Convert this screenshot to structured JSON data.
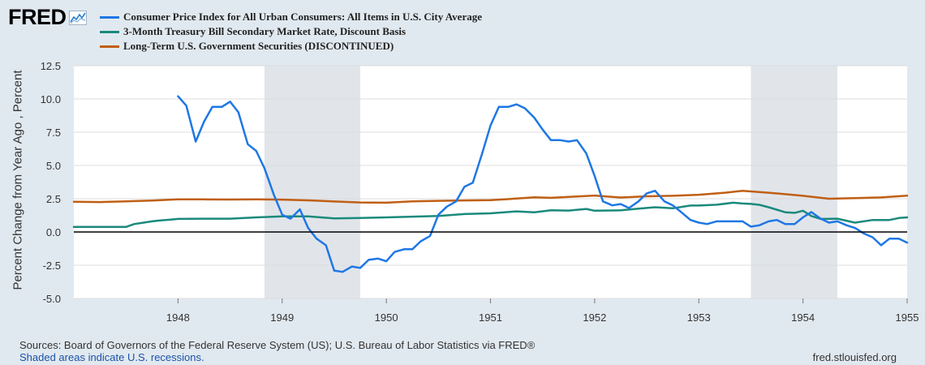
{
  "brand": {
    "name": "FRED"
  },
  "colors": {
    "cpi": "#1f77e4",
    "tbill": "#1a8a7c",
    "longterm": "#c05f14",
    "recession": "#e1e5ea",
    "plot_bg": "#ffffff",
    "grid": "#dcdcdc"
  },
  "chart_data": {
    "type": "line",
    "ylabel": "Percent Change from Year Ago , Percent",
    "xlim": [
      1947.0,
      1955.0
    ],
    "ylim": [
      -5.0,
      12.5
    ],
    "yticks": [
      {
        "v": 12.5,
        "label": "12.5"
      },
      {
        "v": 10.0,
        "label": "10.0"
      },
      {
        "v": 7.5,
        "label": "7.5"
      },
      {
        "v": 5.0,
        "label": "5.0"
      },
      {
        "v": 2.5,
        "label": "2.5"
      },
      {
        "v": 0.0,
        "label": "0.0"
      },
      {
        "v": -2.5,
        "label": "-2.5"
      },
      {
        "v": -5.0,
        "label": "-5.0"
      }
    ],
    "xticks": [
      {
        "v": 1948.0,
        "label": "1948"
      },
      {
        "v": 1949.0,
        "label": "1949"
      },
      {
        "v": 1950.0,
        "label": "1950"
      },
      {
        "v": 1951.0,
        "label": "1951"
      },
      {
        "v": 1952.0,
        "label": "1952"
      },
      {
        "v": 1953.0,
        "label": "1953"
      },
      {
        "v": 1954.0,
        "label": "1954"
      },
      {
        "v": 1955.0,
        "label": "1955"
      }
    ],
    "recessions": [
      [
        1948.83,
        1949.75
      ],
      [
        1953.5,
        1954.33
      ]
    ],
    "series": [
      {
        "key": "cpi",
        "name": "Consumer Price Index for All Urban Consumers: All Items in U.S. City Average",
        "x": [
          1948.0,
          1948.08,
          1948.17,
          1948.25,
          1948.33,
          1948.42,
          1948.5,
          1948.58,
          1948.67,
          1948.75,
          1948.83,
          1948.92,
          1949.0,
          1949.08,
          1949.17,
          1949.25,
          1949.33,
          1949.42,
          1949.5,
          1949.58,
          1949.67,
          1949.75,
          1949.83,
          1949.92,
          1950.0,
          1950.08,
          1950.17,
          1950.25,
          1950.33,
          1950.42,
          1950.5,
          1950.58,
          1950.67,
          1950.75,
          1950.83,
          1950.92,
          1951.0,
          1951.08,
          1951.17,
          1951.25,
          1951.33,
          1951.42,
          1951.5,
          1951.58,
          1951.67,
          1951.75,
          1951.83,
          1951.92,
          1952.0,
          1952.08,
          1952.17,
          1952.25,
          1952.33,
          1952.42,
          1952.5,
          1952.58,
          1952.67,
          1952.75,
          1952.83,
          1952.92,
          1953.0,
          1953.08,
          1953.17,
          1953.25,
          1953.33,
          1953.42,
          1953.5,
          1953.58,
          1953.67,
          1953.75,
          1953.83,
          1953.92,
          1954.0,
          1954.08,
          1954.17,
          1954.25,
          1954.33,
          1954.42,
          1954.5,
          1954.58,
          1954.67,
          1954.75,
          1954.83,
          1954.92,
          1955.0
        ],
        "y": [
          10.2,
          9.5,
          6.8,
          8.3,
          9.4,
          9.4,
          9.8,
          9.0,
          6.6,
          6.1,
          4.8,
          2.8,
          1.3,
          1.0,
          1.7,
          0.3,
          -0.5,
          -1.0,
          -2.9,
          -3.0,
          -2.6,
          -2.7,
          -2.1,
          -2.0,
          -2.2,
          -1.5,
          -1.3,
          -1.3,
          -0.7,
          -0.3,
          1.3,
          1.9,
          2.3,
          3.4,
          3.7,
          5.9,
          8.0,
          9.4,
          9.4,
          9.6,
          9.3,
          8.6,
          7.7,
          6.9,
          6.9,
          6.8,
          6.9,
          5.9,
          4.2,
          2.3,
          2.0,
          2.1,
          1.8,
          2.3,
          2.9,
          3.1,
          2.3,
          2.0,
          1.5,
          0.9,
          0.7,
          0.6,
          0.8,
          0.8,
          0.8,
          0.8,
          0.4,
          0.5,
          0.8,
          0.9,
          0.6,
          0.6,
          1.1,
          1.5,
          1.0,
          0.7,
          0.8,
          0.5,
          0.3,
          -0.1,
          -0.4,
          -1.0,
          -0.5,
          -0.5,
          -0.8
        ]
      },
      {
        "key": "tbill",
        "name": "3-Month Treasury Bill Secondary Market Rate, Discount Basis",
        "x": [
          1947.0,
          1947.08,
          1947.17,
          1947.25,
          1947.33,
          1947.42,
          1947.5,
          1947.58,
          1947.67,
          1947.75,
          1947.83,
          1947.92,
          1948.0,
          1948.25,
          1948.5,
          1948.75,
          1949.0,
          1949.25,
          1949.5,
          1949.75,
          1950.0,
          1950.25,
          1950.5,
          1950.75,
          1951.0,
          1951.17,
          1951.25,
          1951.42,
          1951.58,
          1951.75,
          1951.92,
          1952.0,
          1952.25,
          1952.42,
          1952.58,
          1952.75,
          1952.92,
          1953.0,
          1953.17,
          1953.33,
          1953.42,
          1953.5,
          1953.58,
          1953.67,
          1953.83,
          1953.92,
          1954.0,
          1954.08,
          1954.17,
          1954.33,
          1954.5,
          1954.67,
          1954.83,
          1954.92,
          1955.0
        ],
        "y": [
          0.38,
          0.38,
          0.38,
          0.38,
          0.38,
          0.38,
          0.38,
          0.6,
          0.7,
          0.8,
          0.87,
          0.92,
          0.98,
          1.0,
          1.0,
          1.1,
          1.17,
          1.17,
          1.02,
          1.05,
          1.1,
          1.15,
          1.2,
          1.35,
          1.4,
          1.5,
          1.55,
          1.48,
          1.63,
          1.61,
          1.73,
          1.6,
          1.63,
          1.75,
          1.86,
          1.78,
          1.99,
          1.99,
          2.05,
          2.2,
          2.14,
          2.11,
          2.04,
          1.86,
          1.48,
          1.44,
          1.6,
          1.2,
          0.98,
          1.0,
          0.7,
          0.9,
          0.9,
          1.05,
          1.1
        ]
      },
      {
        "key": "longterm",
        "name": "Long-Term U.S. Government Securities (DISCONTINUED)",
        "x": [
          1947.0,
          1947.25,
          1947.5,
          1947.75,
          1948.0,
          1948.25,
          1948.5,
          1948.75,
          1949.0,
          1949.25,
          1949.5,
          1949.75,
          1950.0,
          1950.25,
          1950.5,
          1950.75,
          1951.0,
          1951.17,
          1951.42,
          1951.58,
          1951.75,
          1952.0,
          1952.25,
          1952.5,
          1952.75,
          1953.0,
          1953.25,
          1953.42,
          1953.67,
          1953.83,
          1954.0,
          1954.25,
          1954.5,
          1954.75,
          1955.0
        ],
        "y": [
          2.27,
          2.25,
          2.3,
          2.36,
          2.45,
          2.45,
          2.44,
          2.45,
          2.43,
          2.38,
          2.29,
          2.22,
          2.2,
          2.3,
          2.34,
          2.37,
          2.39,
          2.47,
          2.61,
          2.57,
          2.64,
          2.74,
          2.59,
          2.68,
          2.72,
          2.8,
          2.95,
          3.1,
          2.95,
          2.84,
          2.72,
          2.5,
          2.55,
          2.6,
          2.73
        ]
      }
    ]
  },
  "footer": {
    "sources": "Sources: Board of Governors of the Federal Reserve System (US); U.S. Bureau of Labor Statistics via FRED®",
    "recessions": "Shaded areas indicate U.S. recessions.",
    "url": "fred.stlouisfed.org"
  }
}
